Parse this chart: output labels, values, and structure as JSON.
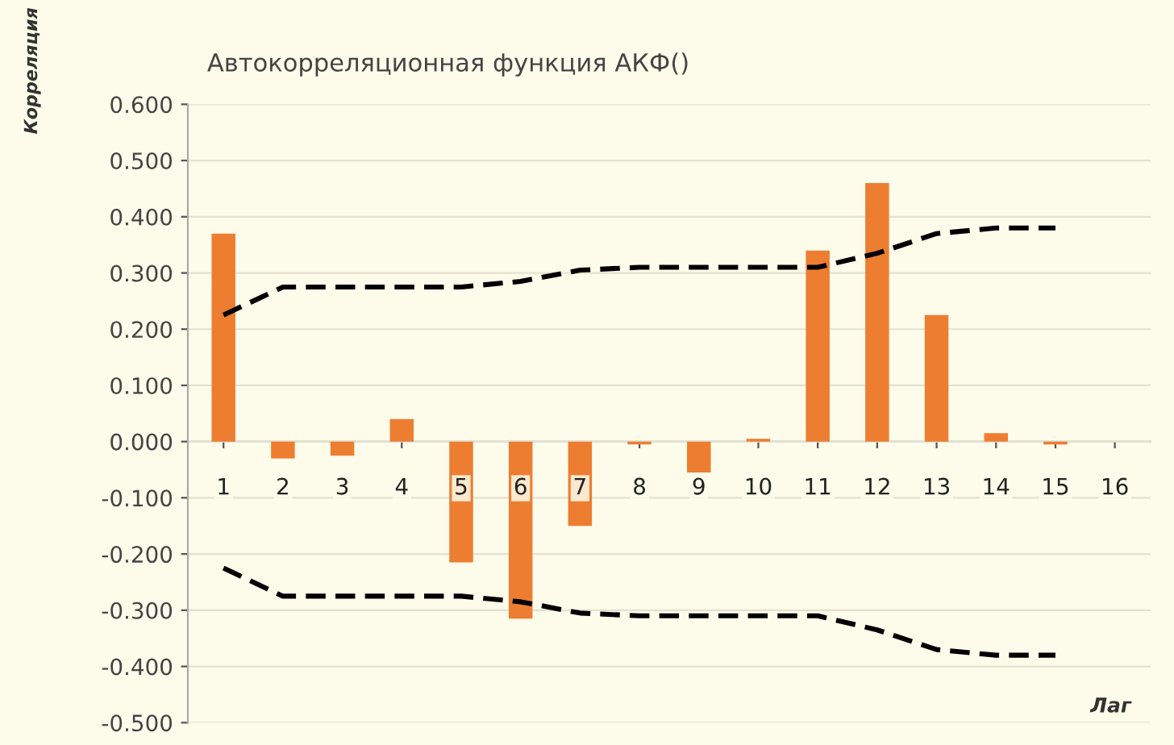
{
  "chart_data": {
    "type": "bar",
    "title": "Автокорреляционная функция АКФ()",
    "xlabel": "Лаг",
    "ylabel": "Корреляция",
    "categories": [
      "1",
      "2",
      "3",
      "4",
      "5",
      "6",
      "7",
      "8",
      "9",
      "10",
      "11",
      "12",
      "13",
      "14",
      "15",
      "16"
    ],
    "series": [
      {
        "type": "bar",
        "color": "#ed7d31",
        "values": [
          0.37,
          -0.03,
          -0.025,
          0.04,
          -0.215,
          -0.315,
          -0.15,
          -0.005,
          -0.055,
          0.005,
          0.34,
          0.46,
          0.225,
          0.015,
          -0.005,
          null
        ]
      },
      {
        "type": "line",
        "color": "#000000",
        "line_style": "dashed",
        "values": [
          0.225,
          0.275,
          0.275,
          0.275,
          0.275,
          0.285,
          0.305,
          0.31,
          0.31,
          0.31,
          0.31,
          0.335,
          0.37,
          0.38,
          0.38,
          null
        ]
      },
      {
        "type": "line",
        "color": "#000000",
        "line_style": "dashed",
        "values": [
          -0.225,
          -0.275,
          -0.275,
          -0.275,
          -0.275,
          -0.285,
          -0.305,
          -0.31,
          -0.31,
          -0.31,
          -0.31,
          -0.335,
          -0.37,
          -0.38,
          -0.38,
          null
        ]
      }
    ],
    "ylim": [
      -0.5,
      0.6
    ],
    "yticks": [
      {
        "value": -0.5,
        "label": "-0.500"
      },
      {
        "value": -0.4,
        "label": "-0.400"
      },
      {
        "value": -0.3,
        "label": "-0.300"
      },
      {
        "value": -0.2,
        "label": "-0.200"
      },
      {
        "value": -0.1,
        "label": "-0.100"
      },
      {
        "value": 0,
        "label": "0.000"
      },
      {
        "value": 0.1,
        "label": "0.100"
      },
      {
        "value": 0.2,
        "label": "0.200"
      },
      {
        "value": 0.3,
        "label": "0.300"
      },
      {
        "value": 0.4,
        "label": "0.400"
      },
      {
        "value": 0.5,
        "label": "0.500"
      },
      {
        "value": 0.6,
        "label": "0.600"
      }
    ],
    "grid": "y"
  }
}
